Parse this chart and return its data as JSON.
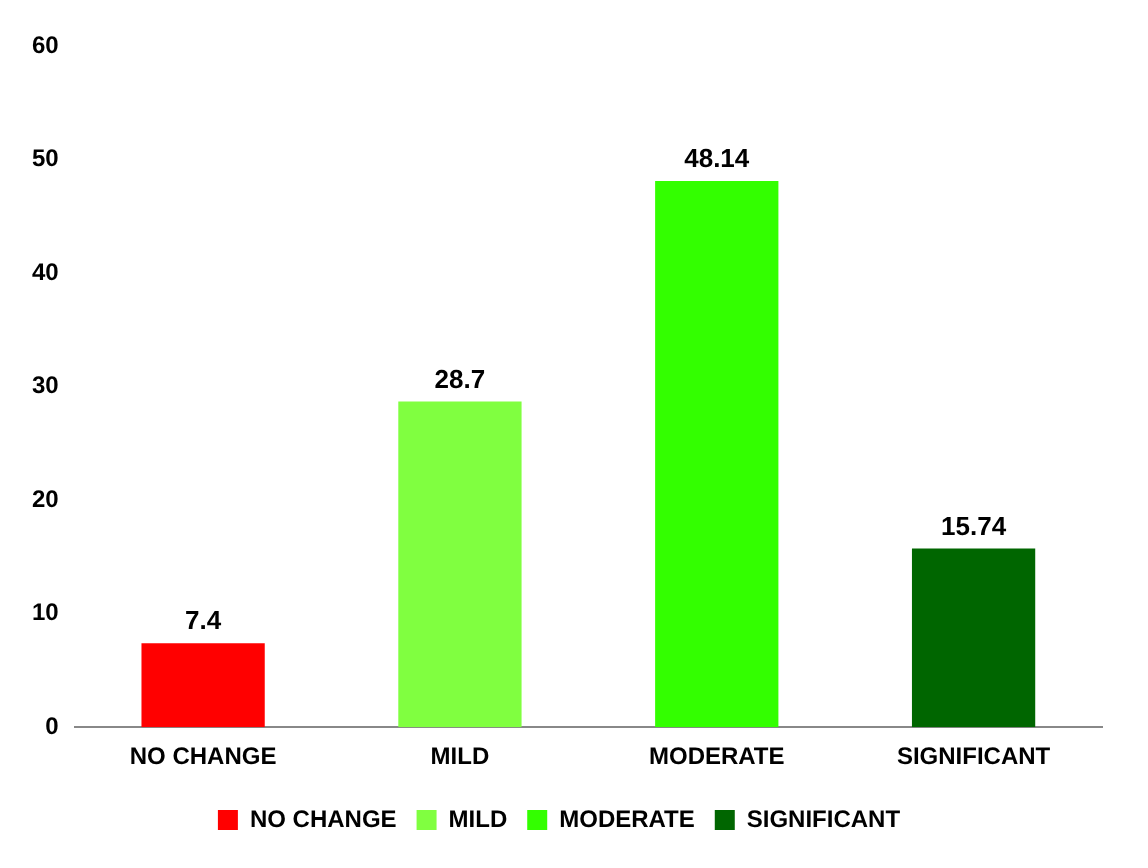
{
  "chart_data": {
    "type": "bar",
    "categories": [
      "NO CHANGE",
      "MILD",
      "MODERATE",
      "SIGNIFICANT"
    ],
    "series": [
      {
        "name": "NO CHANGE",
        "color": "#ff0000",
        "values": [
          7.4,
          null,
          null,
          null
        ]
      },
      {
        "name": "MILD",
        "color": "#80ff40",
        "values": [
          null,
          28.7,
          null,
          null
        ]
      },
      {
        "name": "MODERATE",
        "color": "#33ff00",
        "values": [
          null,
          null,
          48.14,
          null
        ]
      },
      {
        "name": "SIGNIFICANT",
        "color": "#006600",
        "values": [
          null,
          null,
          null,
          15.74
        ]
      }
    ],
    "ylim": [
      0,
      60
    ],
    "yticks": [
      0,
      10,
      20,
      30,
      40,
      50,
      60
    ],
    "grid": false,
    "data_labels": true,
    "legend": "bottom"
  }
}
